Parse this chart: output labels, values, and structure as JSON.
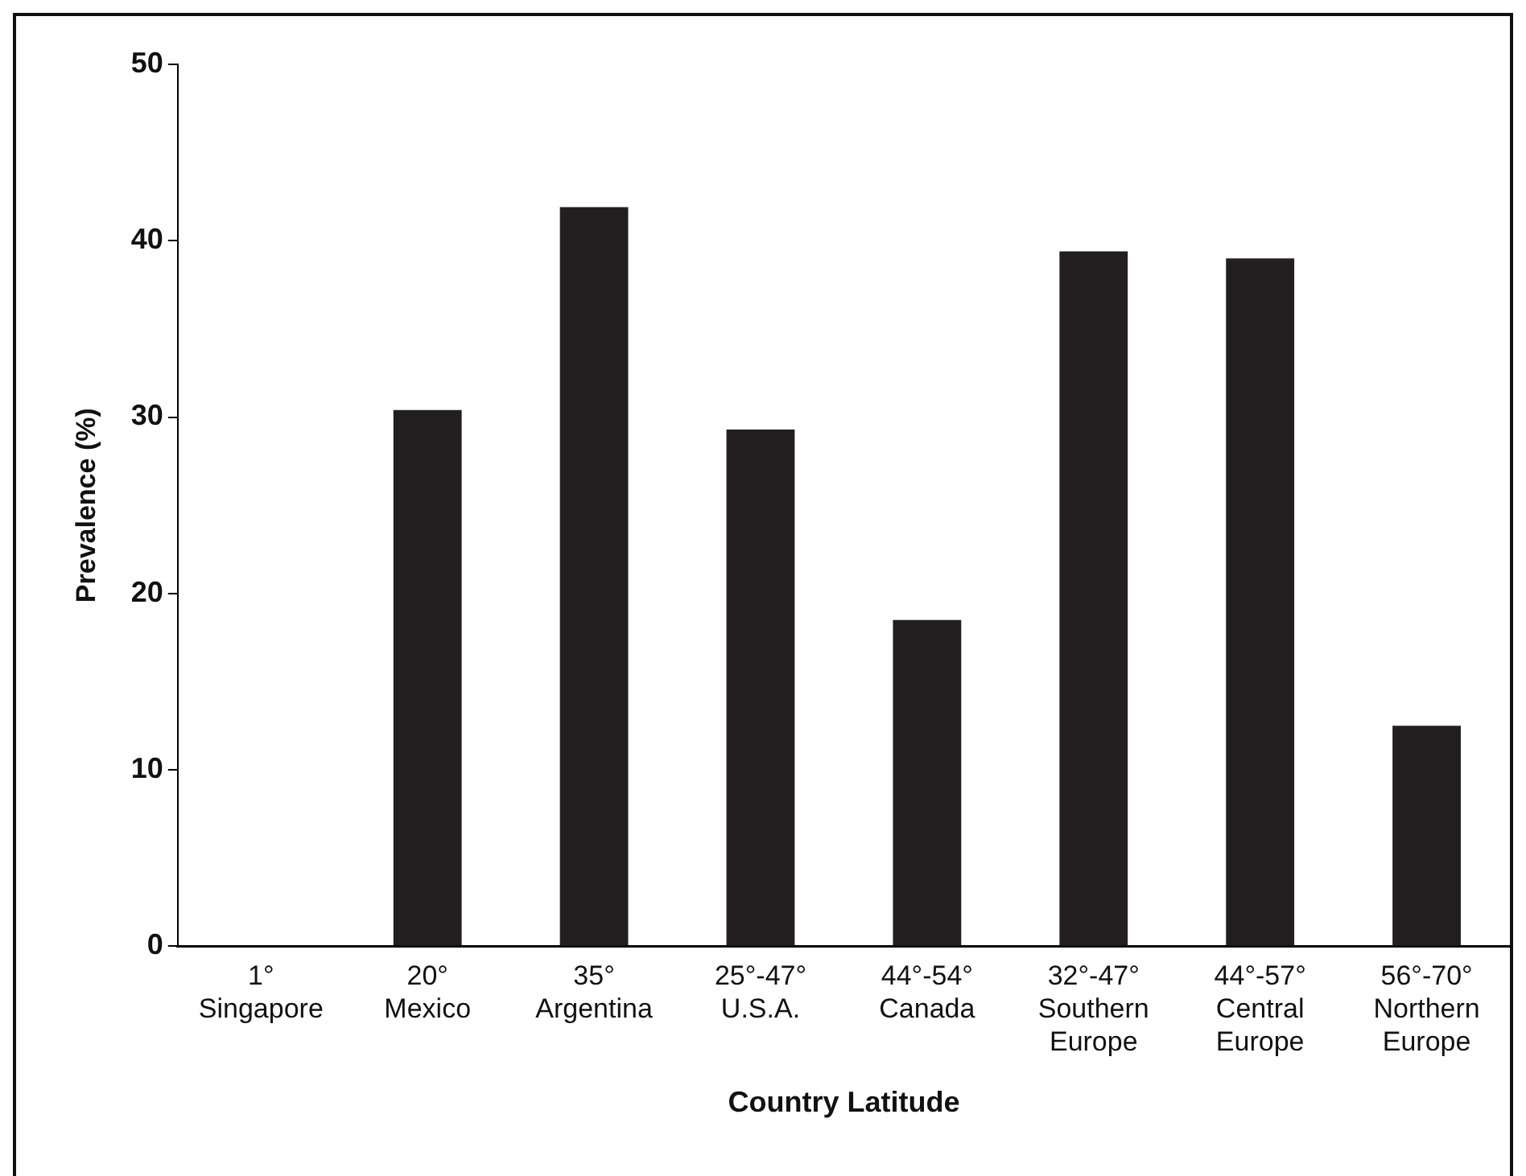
{
  "chart_data": {
    "type": "bar",
    "xlabel": "Country Latitude",
    "ylabel": "Prevalence (%)",
    "categories": [
      "1°\nSingapore",
      "20°\nMexico",
      "35°\nArgentina",
      "25°-47°\nU.S.A.",
      "44°-54°\nCanada",
      "32°-47°\nSouthern\nEurope",
      "44°-57°\nCentral\nEurope",
      "56°-70°\nNorthern\nEurope"
    ],
    "values": [
      0,
      30.4,
      41.9,
      29.3,
      18.5,
      39.4,
      39.0,
      12.5
    ],
    "color": "#231f20",
    "ylim": [
      0,
      50
    ],
    "yticks": [
      0,
      10,
      20,
      30,
      40,
      50
    ],
    "grid": false,
    "legend": false
  }
}
